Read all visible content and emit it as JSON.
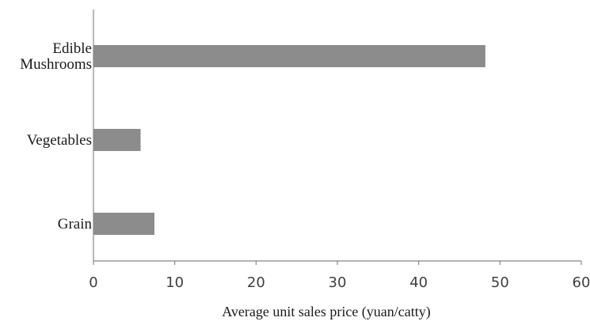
{
  "chart_data": {
    "type": "bar",
    "orientation": "horizontal",
    "categories": [
      "Grain",
      "Vegetables",
      "Edible Mushrooms"
    ],
    "category_lines": [
      [
        "Grain"
      ],
      [
        "Vegetables"
      ],
      [
        "Edible",
        "Mushrooms"
      ]
    ],
    "values": [
      7.5,
      5.8,
      48.2
    ],
    "title": "",
    "xlabel": "Average unit sales price (yuan/catty)",
    "ylabel": "",
    "xlim": [
      0,
      60
    ],
    "xticks": [
      "0",
      "10",
      "20",
      "30",
      "40",
      "50",
      "60"
    ],
    "grid": false,
    "bar_color": "#8c8c8c",
    "axis_color": "#888888"
  }
}
